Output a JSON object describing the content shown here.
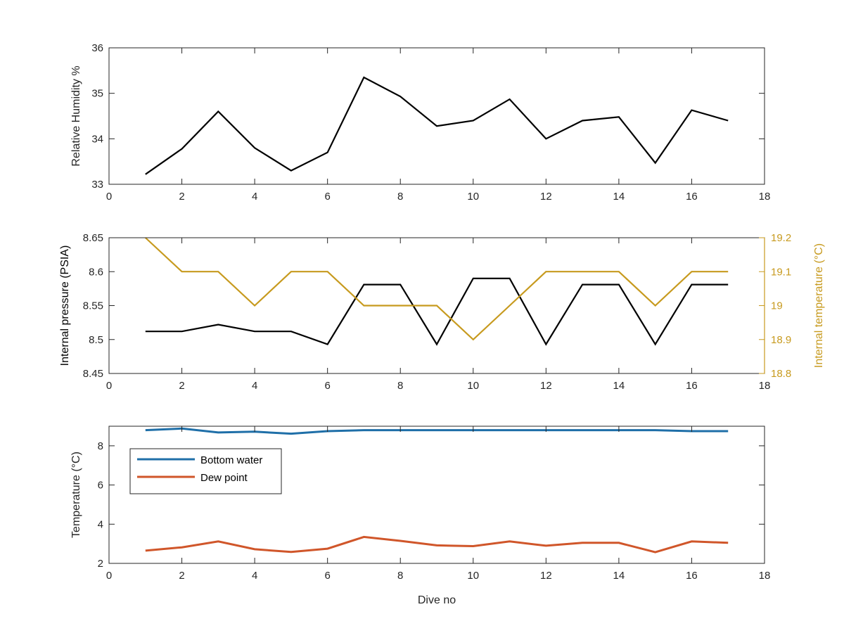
{
  "chart_data": [
    {
      "type": "line",
      "x": [
        1,
        2,
        3,
        4,
        5,
        6,
        7,
        8,
        9,
        10,
        11,
        12,
        13,
        14,
        15,
        16,
        17
      ],
      "xlim": [
        0,
        18
      ],
      "xticks": [
        "0",
        "2",
        "4",
        "6",
        "8",
        "10",
        "12",
        "14",
        "16",
        "18"
      ],
      "ylabel": "Relative Humidity %",
      "ylim": [
        33,
        36
      ],
      "yticks": [
        "33",
        "34",
        "35",
        "36"
      ],
      "series": [
        {
          "color": "#000000",
          "values": [
            33.22,
            33.78,
            34.6,
            33.8,
            33.3,
            33.7,
            35.35,
            34.93,
            34.28,
            34.4,
            34.87,
            34.0,
            34.4,
            34.48,
            33.47,
            34.63,
            34.4
          ]
        }
      ],
      "grid": false
    },
    {
      "type": "line",
      "x": [
        1,
        2,
        3,
        4,
        5,
        6,
        7,
        8,
        9,
        10,
        11,
        12,
        13,
        14,
        15,
        16,
        17
      ],
      "xlim": [
        0,
        18
      ],
      "xticks": [
        "0",
        "2",
        "4",
        "6",
        "8",
        "10",
        "12",
        "14",
        "16",
        "18"
      ],
      "ylabel": "Internal pressure (PSIA)",
      "ylim": [
        8.45,
        8.65
      ],
      "yticks": [
        "8.45",
        "8.5",
        "8.55",
        "8.6",
        "8.65"
      ],
      "y2label": "Internal temperature (°C)",
      "y2lim": [
        18.8,
        19.2
      ],
      "y2ticks": [
        "18.8",
        "18.9",
        "19",
        "19.1",
        "19.2"
      ],
      "y2color": "#C79A1E",
      "series": [
        {
          "axis": "left",
          "color": "#000000",
          "values": [
            8.512,
            8.512,
            8.522,
            8.512,
            8.512,
            8.493,
            8.581,
            8.581,
            8.493,
            8.59,
            8.59,
            8.493,
            8.581,
            8.581,
            8.493,
            8.581,
            8.581
          ]
        },
        {
          "axis": "right",
          "color": "#C79A1E",
          "values": [
            19.2,
            19.1,
            19.1,
            19.0,
            19.1,
            19.1,
            19.0,
            19.0,
            19.0,
            18.9,
            19.0,
            19.1,
            19.1,
            19.1,
            19.0,
            19.1,
            19.1
          ]
        }
      ],
      "grid": false
    },
    {
      "type": "line",
      "x": [
        1,
        2,
        3,
        4,
        5,
        6,
        7,
        8,
        9,
        10,
        11,
        12,
        13,
        14,
        15,
        16,
        17
      ],
      "xlim": [
        0,
        18
      ],
      "xticks": [
        "0",
        "2",
        "4",
        "6",
        "8",
        "10",
        "12",
        "14",
        "16",
        "18"
      ],
      "xlabel": "Dive no",
      "ylabel": "Temperature (°C)",
      "ylim": [
        2,
        9
      ],
      "yticks": [
        "2",
        "4",
        "6",
        "8"
      ],
      "legend_position": "top-left",
      "series": [
        {
          "name": "Bottom water",
          "color": "#1F6FA8",
          "values": [
            8.8,
            8.88,
            8.68,
            8.72,
            8.62,
            8.75,
            8.8,
            8.8,
            8.8,
            8.8,
            8.8,
            8.8,
            8.8,
            8.8,
            8.8,
            8.75,
            8.75
          ]
        },
        {
          "name": "Dew point",
          "color": "#D0562A",
          "values": [
            2.65,
            2.82,
            3.12,
            2.72,
            2.58,
            2.75,
            3.35,
            3.15,
            2.92,
            2.88,
            3.12,
            2.9,
            3.05,
            3.05,
            2.57,
            3.12,
            3.05
          ]
        }
      ],
      "grid": false
    }
  ]
}
